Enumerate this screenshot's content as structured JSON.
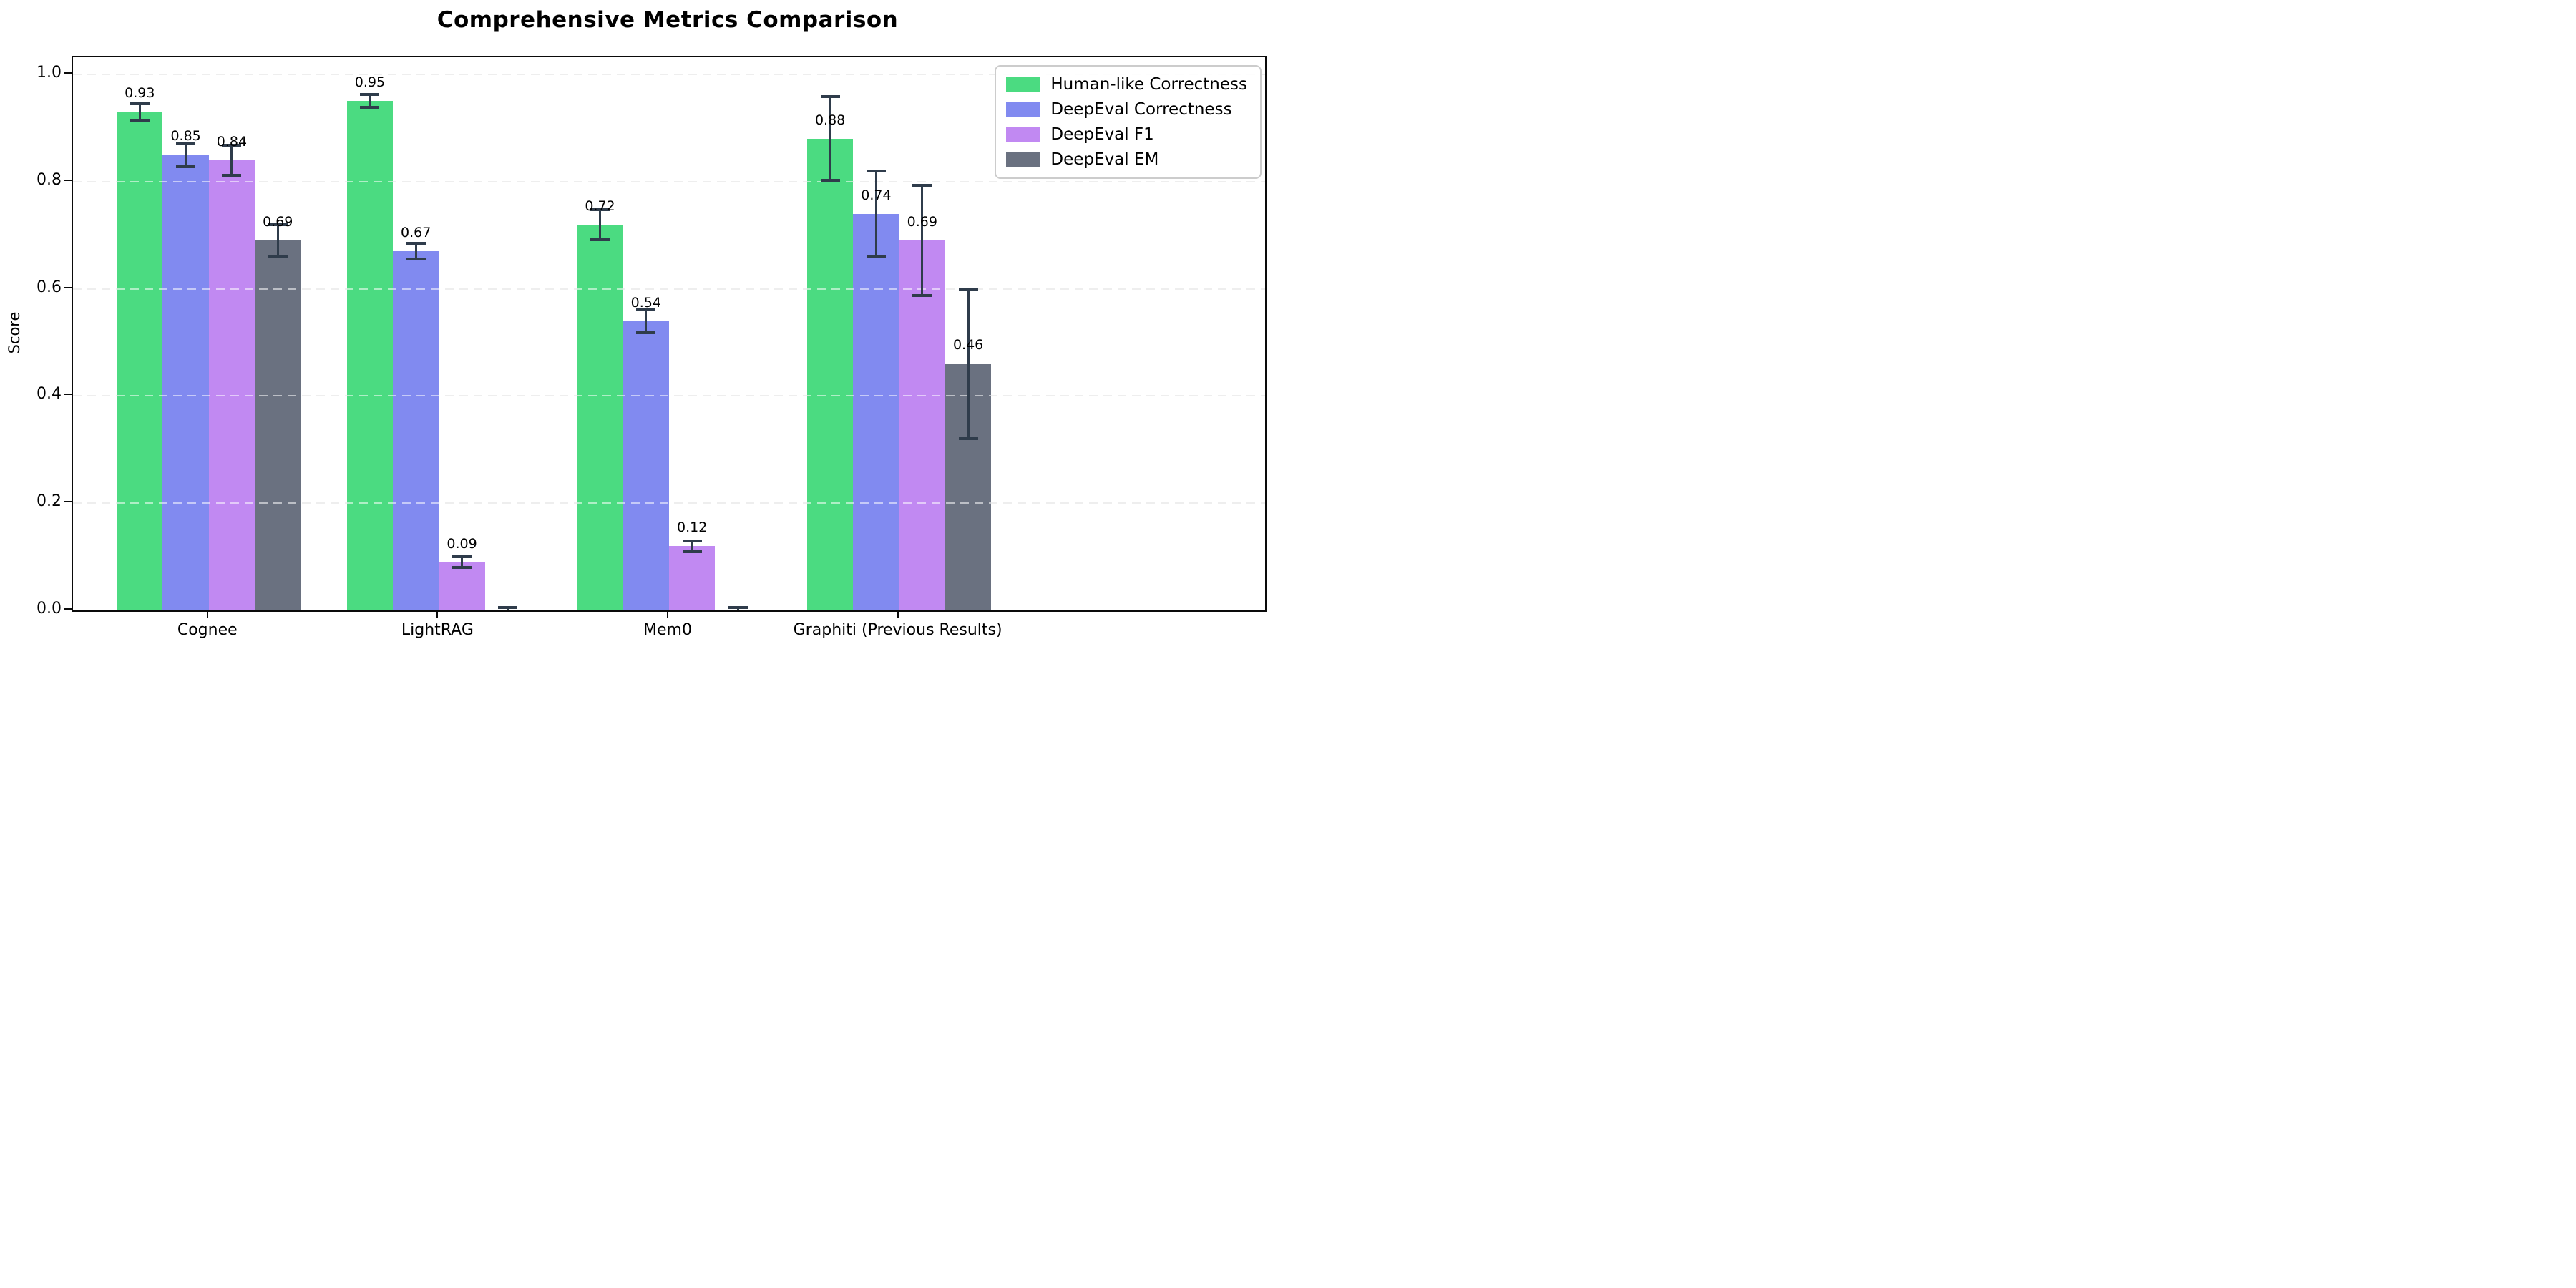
{
  "chart_data": {
    "type": "bar",
    "title": "Comprehensive Metrics Comparison",
    "ylabel": "Score",
    "xlabel": "",
    "categories": [
      "Cognee",
      "LightRAG",
      "Mem0",
      "Graphiti (Previous Results)"
    ],
    "series": [
      {
        "name": "Human-like Correctness",
        "color": "#4bdb81",
        "values": [
          0.93,
          0.95,
          0.72,
          0.88
        ],
        "errors": [
          0.015,
          0.012,
          0.028,
          0.078
        ],
        "labels": [
          "0.93",
          "0.95",
          "0.72",
          "0.88"
        ]
      },
      {
        "name": "DeepEval Correctness",
        "color": "#818af0",
        "values": [
          0.85,
          0.67,
          0.54,
          0.74
        ],
        "errors": [
          0.022,
          0.015,
          0.022,
          0.08
        ],
        "labels": [
          "0.85",
          "0.67",
          "0.54",
          "0.74"
        ]
      },
      {
        "name": "DeepEval F1",
        "color": "#c189f2",
        "values": [
          0.84,
          0.09,
          0.12,
          0.69
        ],
        "errors": [
          0.028,
          0.01,
          0.01,
          0.103
        ],
        "labels": [
          "0.84",
          "0.09",
          "0.12",
          "0.69"
        ]
      },
      {
        "name": "DeepEval EM",
        "color": "#6a7180",
        "values": [
          0.69,
          0.0,
          0.0,
          0.46
        ],
        "errors": [
          0.03,
          0.005,
          0.005,
          0.14
        ],
        "labels": [
          "0.69",
          null,
          null,
          "0.46"
        ]
      }
    ],
    "yticks": [
      0.0,
      0.2,
      0.4,
      0.6,
      0.8,
      1.0
    ],
    "ytick_labels": [
      "0.0",
      "0.2",
      "0.4",
      "0.6",
      "0.8",
      "1.0"
    ],
    "ylim": [
      0,
      1.032
    ],
    "grid": {
      "style": "dashed",
      "color": "#d9d9d9",
      "axis": "y"
    },
    "legend_position": "upper right",
    "error_bar_color": "#2f3c4b",
    "label_offset": 0.02
  }
}
